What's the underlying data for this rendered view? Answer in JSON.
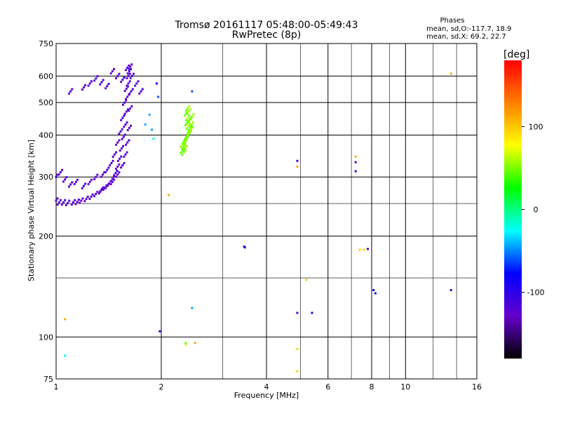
{
  "chart_data": {
    "type": "scatter",
    "title": "Tromsø 20161117 05:48:00-05:49:43",
    "subtitle": "RwPretec (8p)",
    "xlabel": "Frequency [MHz]",
    "ylabel": "Stationary phase Virtual Height [km]",
    "x_scale": "log",
    "y_scale": "log",
    "xlim": [
      1,
      16
    ],
    "ylim": [
      75,
      750
    ],
    "x_ticks": [
      1,
      2,
      4,
      6,
      8,
      10,
      16
    ],
    "y_ticks": [
      75,
      100,
      200,
      300,
      400,
      500,
      600,
      750
    ],
    "grid": true,
    "stats": {
      "heading": "Phases",
      "line1": "mean, sd,O:-117.7, 18.9",
      "line2": "mean, sd,X:  69.2, 22.7"
    },
    "colorbar": {
      "label": "[deg]",
      "range": [
        -180,
        180
      ],
      "ticks": [
        100,
        0,
        -100
      ],
      "colors": [
        "#ff0000",
        "#ff8000",
        "#ffff00",
        "#00ff00",
        "#00ffff",
        "#0000ff",
        "#6600cc",
        "#000000"
      ]
    },
    "trace_o_mode": {
      "name": "",
      "phase_deg": -120,
      "points": [
        [
          1.0,
          255
        ],
        [
          1.02,
          252
        ],
        [
          1.05,
          252
        ],
        [
          1.08,
          251
        ],
        [
          1.12,
          252
        ],
        [
          1.15,
          253
        ],
        [
          1.18,
          255
        ],
        [
          1.22,
          258
        ],
        [
          1.26,
          262
        ],
        [
          1.3,
          267
        ],
        [
          1.34,
          272
        ],
        [
          1.38,
          279
        ],
        [
          1.42,
          287
        ],
        [
          1.45,
          296
        ],
        [
          1.48,
          308
        ],
        [
          1.5,
          322
        ],
        [
          1.52,
          340
        ],
        [
          1.54,
          365
        ],
        [
          1.56,
          395
        ],
        [
          1.58,
          430
        ],
        [
          1.59,
          470
        ],
        [
          1.6,
          520
        ],
        [
          1.61,
          570
        ],
        [
          1.62,
          620
        ],
        [
          1.0,
          300
        ],
        [
          1.03,
          310
        ],
        [
          1.06,
          295
        ],
        [
          1.1,
          285
        ],
        [
          1.14,
          290
        ],
        [
          1.2,
          282
        ],
        [
          1.25,
          290
        ],
        [
          1.3,
          300
        ],
        [
          1.36,
          305
        ],
        [
          1.4,
          315
        ],
        [
          1.44,
          330
        ],
        [
          1.47,
          350
        ],
        [
          1.5,
          380
        ],
        [
          1.53,
          410
        ],
        [
          1.55,
          450
        ],
        [
          1.57,
          500
        ],
        [
          1.59,
          550
        ],
        [
          1.61,
          600
        ],
        [
          1.63,
          640
        ],
        [
          1.65,
          600
        ],
        [
          1.64,
          540
        ],
        [
          1.63,
          480
        ],
        [
          1.62,
          420
        ],
        [
          1.6,
          380
        ],
        [
          1.58,
          350
        ],
        [
          1.55,
          325
        ],
        [
          1.5,
          305
        ],
        [
          1.45,
          290
        ],
        [
          1.4,
          282
        ],
        [
          1.35,
          275
        ]
      ]
    },
    "trace_upper_scatter": {
      "name": "",
      "phase_deg": -120,
      "points": [
        [
          1.1,
          540
        ],
        [
          1.2,
          555
        ],
        [
          1.25,
          570
        ],
        [
          1.3,
          590
        ],
        [
          1.35,
          575
        ],
        [
          1.4,
          560
        ],
        [
          1.45,
          620
        ],
        [
          1.5,
          600
        ],
        [
          1.55,
          585
        ],
        [
          1.6,
          635
        ],
        [
          1.7,
          570
        ],
        [
          1.75,
          540
        ]
      ]
    },
    "trace_x_mode": {
      "name": "",
      "phase_deg": 70,
      "points": [
        [
          2.3,
          360
        ],
        [
          2.32,
          370
        ],
        [
          2.34,
          380
        ],
        [
          2.36,
          390
        ],
        [
          2.38,
          400
        ],
        [
          2.4,
          410
        ],
        [
          2.42,
          420
        ],
        [
          2.44,
          430
        ],
        [
          2.4,
          440
        ],
        [
          2.38,
          450
        ],
        [
          2.36,
          465
        ],
        [
          2.38,
          480
        ],
        [
          2.32,
          355
        ],
        [
          2.34,
          365
        ],
        [
          2.3,
          375
        ],
        [
          2.33,
          385
        ],
        [
          2.36,
          395
        ],
        [
          2.41,
          405
        ],
        [
          2.43,
          415
        ],
        [
          2.39,
          425
        ],
        [
          2.37,
          435
        ],
        [
          2.42,
          445
        ],
        [
          2.45,
          455
        ],
        [
          2.4,
          470
        ]
      ]
    },
    "isolated_points": [
      {
        "x": 1.8,
        "y": 430,
        "phase_deg": -40
      },
      {
        "x": 1.85,
        "y": 460,
        "phase_deg": -40
      },
      {
        "x": 1.88,
        "y": 415,
        "phase_deg": -40
      },
      {
        "x": 1.9,
        "y": 390,
        "phase_deg": -20
      },
      {
        "x": 1.94,
        "y": 570,
        "phase_deg": -80
      },
      {
        "x": 1.96,
        "y": 520,
        "phase_deg": -60
      },
      {
        "x": 2.45,
        "y": 540,
        "phase_deg": -60
      },
      {
        "x": 2.1,
        "y": 265,
        "phase_deg": 120
      },
      {
        "x": 1.98,
        "y": 104,
        "phase_deg": -110
      },
      {
        "x": 2.35,
        "y": 96,
        "phase_deg": 60
      },
      {
        "x": 2.35,
        "y": 95,
        "phase_deg": 80
      },
      {
        "x": 2.5,
        "y": 96,
        "phase_deg": 120
      },
      {
        "x": 2.45,
        "y": 122,
        "phase_deg": -40
      },
      {
        "x": 1.06,
        "y": 113,
        "phase_deg": 120
      },
      {
        "x": 1.06,
        "y": 88,
        "phase_deg": -20
      },
      {
        "x": 3.45,
        "y": 186,
        "phase_deg": -120
      },
      {
        "x": 3.47,
        "y": 185,
        "phase_deg": -100
      },
      {
        "x": 4.9,
        "y": 335,
        "phase_deg": -120
      },
      {
        "x": 4.9,
        "y": 322,
        "phase_deg": 120
      },
      {
        "x": 4.9,
        "y": 118,
        "phase_deg": -120
      },
      {
        "x": 5.4,
        "y": 118,
        "phase_deg": -100
      },
      {
        "x": 5.2,
        "y": 148,
        "phase_deg": 110
      },
      {
        "x": 4.9,
        "y": 92,
        "phase_deg": 110
      },
      {
        "x": 4.9,
        "y": 79,
        "phase_deg": 110
      },
      {
        "x": 7.2,
        "y": 345,
        "phase_deg": 120
      },
      {
        "x": 7.2,
        "y": 332,
        "phase_deg": -120
      },
      {
        "x": 7.2,
        "y": 312,
        "phase_deg": -100
      },
      {
        "x": 7.4,
        "y": 182,
        "phase_deg": 110
      },
      {
        "x": 7.6,
        "y": 182,
        "phase_deg": 110
      },
      {
        "x": 7.8,
        "y": 183,
        "phase_deg": -120
      },
      {
        "x": 8.1,
        "y": 138,
        "phase_deg": -80
      },
      {
        "x": 8.2,
        "y": 135,
        "phase_deg": -90
      },
      {
        "x": 13.5,
        "y": 138,
        "phase_deg": -110
      },
      {
        "x": 13.5,
        "y": 610,
        "phase_deg": 120
      }
    ]
  }
}
